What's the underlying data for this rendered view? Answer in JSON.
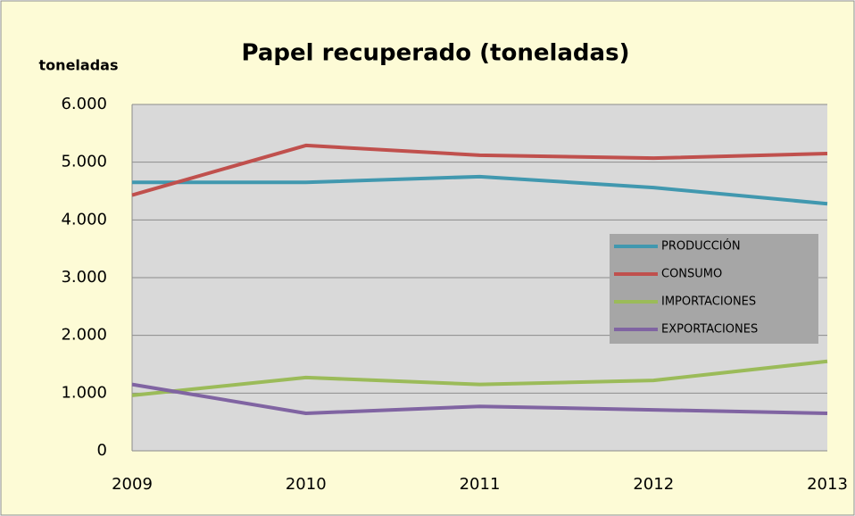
{
  "chart_data": {
    "type": "line",
    "title": "Papel recuperado (toneladas)",
    "y_label": "toneladas",
    "categories": [
      "2009",
      "2010",
      "2011",
      "2012",
      "2013"
    ],
    "series": [
      {
        "name": "PRODUCCIÓN",
        "color": "#4198af",
        "values": [
          4650,
          4650,
          4750,
          4560,
          4280
        ]
      },
      {
        "name": "CONSUMO",
        "color": "#c0504d",
        "values": [
          4430,
          5290,
          5120,
          5070,
          5150
        ]
      },
      {
        "name": "IMPORTACIONES",
        "color": "#9bbb59",
        "values": [
          960,
          1270,
          1150,
          1220,
          1550
        ]
      },
      {
        "name": "EXPORTACIONES",
        "color": "#8064a2",
        "values": [
          1150,
          650,
          770,
          710,
          650
        ]
      }
    ],
    "ylim": [
      0,
      6000
    ],
    "yticks": [
      0,
      {
        "value": 1000,
        "label": "1.000"
      },
      {
        "value": 2000,
        "label": "2.000"
      },
      {
        "value": 3000,
        "label": "3.000"
      },
      {
        "value": 4000,
        "label": "4.000"
      },
      {
        "value": 5000,
        "label": "5.000"
      },
      {
        "value": 6000,
        "label": "6.000"
      }
    ],
    "grid": true,
    "legend": "right"
  }
}
